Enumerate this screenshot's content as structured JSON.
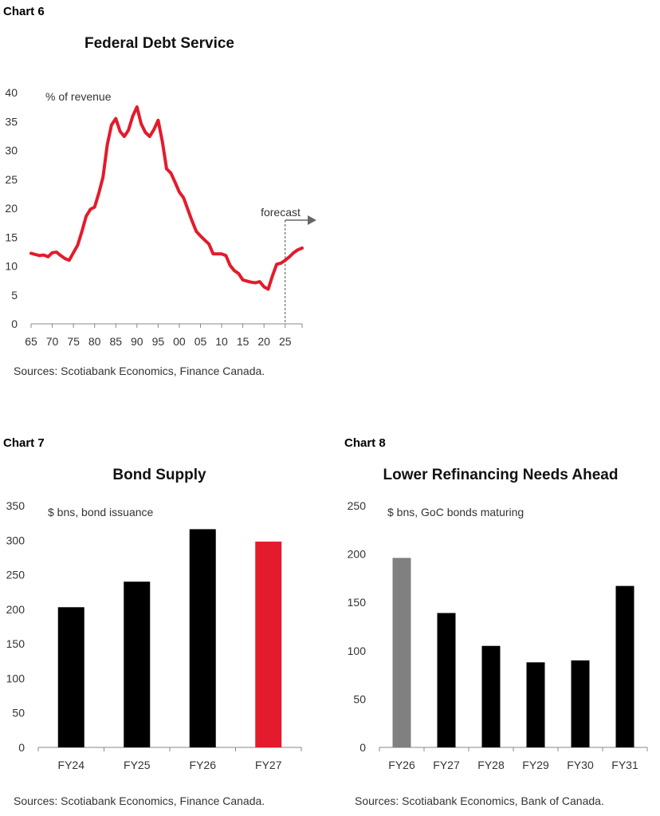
{
  "charts": [
    {
      "label": "Chart 6",
      "title": "Federal Debt Service",
      "unit_note": "% of revenue",
      "source": "Sources: Scotiabank Economics, Finance Canada."
    },
    {
      "label": "Chart 7",
      "title": "Bond Supply",
      "unit_note": "$ bns,  bond issuance",
      "source": "Sources: Scotiabank Economics, Finance Canada."
    },
    {
      "label": "Chart 8",
      "title": "Lower Refinancing Needs Ahead",
      "unit_note": "$ bns,  GoC bonds maturing",
      "source": "Sources: Scotiabank Economics, Bank of Canada."
    }
  ],
  "chart_data": [
    {
      "type": "line",
      "title": "Federal Debt Service",
      "ylabel": "% of revenue",
      "ylim": [
        0,
        40
      ],
      "yticks": [
        0,
        5,
        10,
        15,
        20,
        25,
        30,
        35,
        40
      ],
      "xlim": [
        1965,
        2029
      ],
      "xticks": [
        1965,
        1970,
        1975,
        1980,
        1985,
        1990,
        1995,
        2000,
        2005,
        2010,
        2015,
        2020,
        2025
      ],
      "xtick_labels": [
        "65",
        "70",
        "75",
        "80",
        "85",
        "90",
        "95",
        "00",
        "05",
        "10",
        "15",
        "20",
        "25"
      ],
      "forecast_label": "forecast",
      "forecast_start": 2025,
      "color": "#e31b2c",
      "series": [
        {
          "x": [
            1965,
            1966,
            1967,
            1968,
            1969,
            1970,
            1971,
            1972,
            1973,
            1974,
            1975,
            1976,
            1977,
            1978,
            1979,
            1980,
            1981,
            1982,
            1983,
            1984,
            1985,
            1986,
            1987,
            1988,
            1989,
            1990,
            1991,
            1992,
            1993,
            1994,
            1995,
            1996,
            1997,
            1998,
            1999,
            2000,
            2001,
            2002,
            2003,
            2004,
            2005,
            2006,
            2007,
            2008,
            2009,
            2010,
            2011,
            2012,
            2013,
            2014,
            2015,
            2016,
            2017,
            2018,
            2019,
            2020,
            2021,
            2022,
            2023,
            2024,
            2025,
            2026,
            2027,
            2028,
            2029
          ],
          "values": [
            12.2,
            12,
            11.8,
            11.9,
            11.6,
            12.3,
            12.4,
            11.8,
            11.3,
            11,
            12.3,
            13.6,
            16,
            18.6,
            19.8,
            20.2,
            22.6,
            25.4,
            31,
            34.4,
            35.5,
            33.3,
            32.4,
            33.5,
            35.9,
            37.5,
            34.6,
            33.1,
            32.4,
            33.6,
            35.2,
            31.5,
            26.8,
            26.1,
            24.5,
            22.8,
            21.8,
            19.8,
            17.8,
            16,
            15.2,
            14.5,
            13.8,
            12.1,
            12.1,
            12.1,
            11.8,
            10.1,
            9.2,
            8.7,
            7.6,
            7.4,
            7.2,
            7.1,
            7.3,
            6.4,
            6,
            8.3,
            10.3,
            10.5,
            11,
            11.6,
            12.3,
            12.8,
            13.1
          ]
        }
      ]
    },
    {
      "type": "bar",
      "title": "Bond Supply",
      "ylabel": "$ bns,  bond issuance",
      "ylim": [
        0,
        350
      ],
      "yticks": [
        0,
        50,
        100,
        150,
        200,
        250,
        300,
        350
      ],
      "categories": [
        "FY24",
        "FY25",
        "FY26",
        "FY27"
      ],
      "values": [
        203,
        240,
        316,
        298
      ],
      "colors": [
        "#000000",
        "#000000",
        "#000000",
        "#e31b2c"
      ]
    },
    {
      "type": "bar",
      "title": "Lower Refinancing Needs Ahead",
      "ylabel": "$ bns,  GoC bonds maturing",
      "ylim": [
        0,
        250
      ],
      "yticks": [
        0,
        50,
        100,
        150,
        200,
        250
      ],
      "categories": [
        "FY26",
        "FY27",
        "FY28",
        "FY29",
        "FY30",
        "FY31"
      ],
      "values": [
        196,
        139,
        105,
        88,
        90,
        167
      ],
      "colors": [
        "#808080",
        "#000000",
        "#000000",
        "#000000",
        "#000000",
        "#000000"
      ]
    }
  ]
}
